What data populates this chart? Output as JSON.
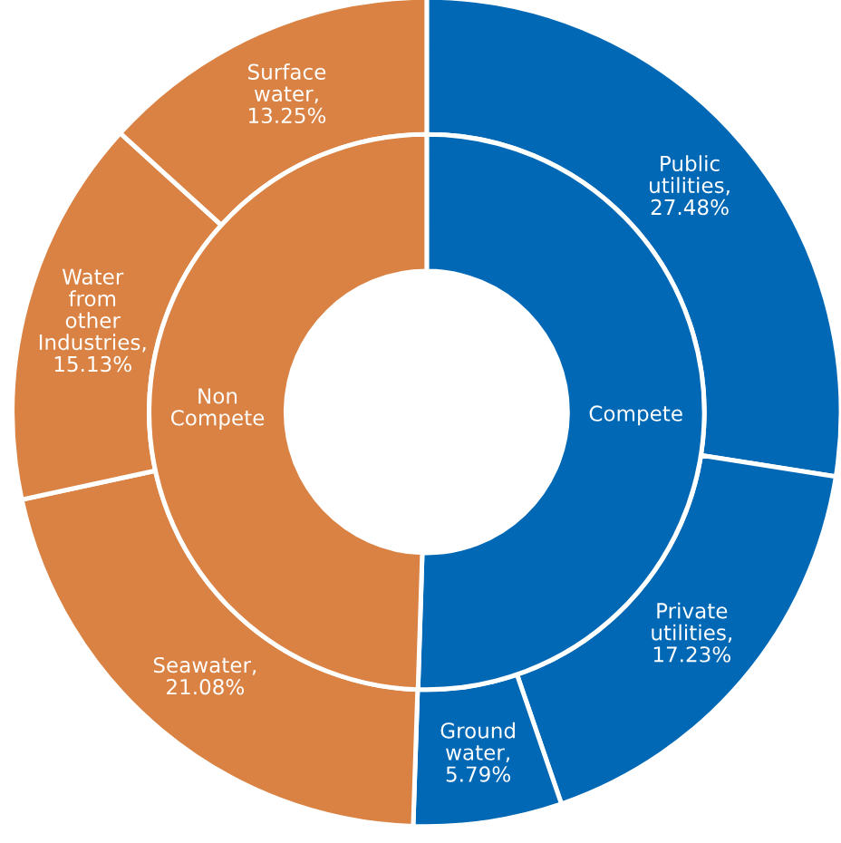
{
  "chart_data": {
    "type": "donut",
    "categories": [
      "Public\nutilities,\n27.48%",
      "Private\nutilities,\n17.23%",
      "Ground\nwater,\n5.79%",
      "Seawater,\n21.08%",
      "Water\nfrom\nother\nIndustries,\n15.13%",
      "Surface\nwater,\n13.25%"
    ],
    "annotations": [
      "Compete",
      "Non\nCompete"
    ],
    "series": [
      {
        "values": [
          27.48,
          17.23,
          5.79,
          21.08,
          15.13,
          13.25
        ],
        "colors": [
          "#0068b4",
          "#0068b4",
          "#0068b4",
          "#d98243",
          "#d98243",
          "#d98243"
        ]
      },
      {
        "values": [
          50.5,
          null,
          null,
          49.5,
          null,
          null
        ],
        "colors": [
          "#0068b4",
          null,
          null,
          "#d98243",
          null,
          null
        ]
      }
    ]
  }
}
